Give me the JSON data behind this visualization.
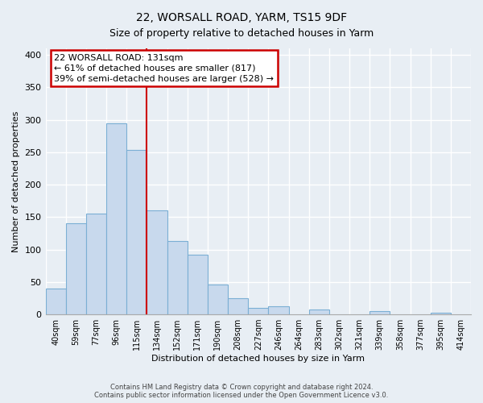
{
  "title": "22, WORSALL ROAD, YARM, TS15 9DF",
  "subtitle": "Size of property relative to detached houses in Yarm",
  "xlabel": "Distribution of detached houses by size in Yarm",
  "ylabel": "Number of detached properties",
  "bar_labels": [
    "40sqm",
    "59sqm",
    "77sqm",
    "96sqm",
    "115sqm",
    "134sqm",
    "152sqm",
    "171sqm",
    "190sqm",
    "208sqm",
    "227sqm",
    "246sqm",
    "264sqm",
    "283sqm",
    "302sqm",
    "321sqm",
    "339sqm",
    "358sqm",
    "377sqm",
    "395sqm",
    "414sqm"
  ],
  "bar_values": [
    40,
    140,
    155,
    295,
    253,
    160,
    113,
    92,
    46,
    25,
    10,
    13,
    0,
    8,
    0,
    0,
    5,
    0,
    0,
    3,
    0
  ],
  "bar_color": "#c8d9ed",
  "bar_edge_color": "#7bafd4",
  "vline_x_index": 4.5,
  "annotation_text_line1": "22 WORSALL ROAD: 131sqm",
  "annotation_text_line2": "← 61% of detached houses are smaller (817)",
  "annotation_text_line3": "39% of semi-detached houses are larger (528) →",
  "annotation_box_color": "#ffffff",
  "annotation_box_edge_color": "#cc0000",
  "vline_color": "#cc0000",
  "ylim": [
    0,
    410
  ],
  "yticks": [
    0,
    50,
    100,
    150,
    200,
    250,
    300,
    350,
    400
  ],
  "footer_line1": "Contains HM Land Registry data © Crown copyright and database right 2024.",
  "footer_line2": "Contains public sector information licensed under the Open Government Licence v3.0.",
  "background_color": "#e8eef4",
  "grid_color": "#ffffff",
  "title_fontsize": 10,
  "subtitle_fontsize": 9,
  "axis_label_fontsize": 8,
  "tick_fontsize": 7,
  "annotation_fontsize": 8,
  "footer_fontsize": 6
}
